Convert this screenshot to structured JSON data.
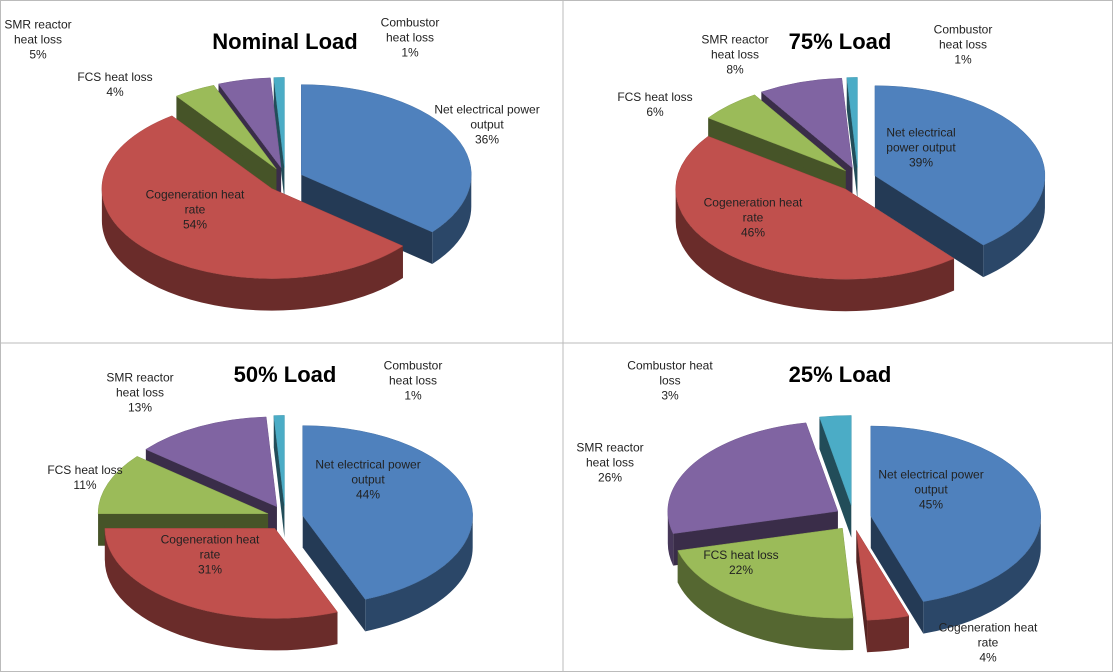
{
  "chart_data": [
    {
      "type": "pie",
      "title": "Nominal Load",
      "categories": [
        "Net electrical power output",
        "Cogeneration heat rate",
        "FCS heat loss",
        "SMR reactor heat loss",
        "Combustor heat loss"
      ],
      "values": [
        36,
        54,
        4,
        5,
        1
      ],
      "value_labels": [
        "36%",
        "54%",
        "4%",
        "5%",
        "1%"
      ],
      "colors": [
        "#4f81bd",
        "#c0504d",
        "#9bbb59",
        "#8064a2",
        "#4bacc6"
      ]
    },
    {
      "type": "pie",
      "title": "75% Load",
      "categories": [
        "Net electrical power output",
        "Cogeneration heat rate",
        "FCS heat loss",
        "SMR reactor heat loss",
        "Combustor heat loss"
      ],
      "values": [
        39,
        46,
        6,
        8,
        1
      ],
      "value_labels": [
        "39%",
        "46%",
        "6%",
        "8%",
        "1%"
      ],
      "colors": [
        "#4f81bd",
        "#c0504d",
        "#9bbb59",
        "#8064a2",
        "#4bacc6"
      ]
    },
    {
      "type": "pie",
      "title": "50% Load",
      "categories": [
        "Net electrical power output",
        "Cogeneration heat rate",
        "FCS heat loss",
        "SMR reactor heat loss",
        "Combustor heat loss"
      ],
      "values": [
        44,
        31,
        11,
        13,
        1
      ],
      "value_labels": [
        "44%",
        "31%",
        "11%",
        "13%",
        "1%"
      ],
      "colors": [
        "#4f81bd",
        "#c0504d",
        "#9bbb59",
        "#8064a2",
        "#4bacc6"
      ]
    },
    {
      "type": "pie",
      "title": "25% Load",
      "categories": [
        "Net electrical power output",
        "Cogeneration heat rate",
        "FCS heat loss",
        "SMR reactor heat loss",
        "Combustor heat loss"
      ],
      "values": [
        45,
        4,
        22,
        26,
        3
      ],
      "value_labels": [
        "45%",
        "4%",
        "22%",
        "26%",
        "3%"
      ],
      "colors": [
        "#4f81bd",
        "#c0504d",
        "#9bbb59",
        "#8064a2",
        "#4bacc6"
      ]
    }
  ]
}
